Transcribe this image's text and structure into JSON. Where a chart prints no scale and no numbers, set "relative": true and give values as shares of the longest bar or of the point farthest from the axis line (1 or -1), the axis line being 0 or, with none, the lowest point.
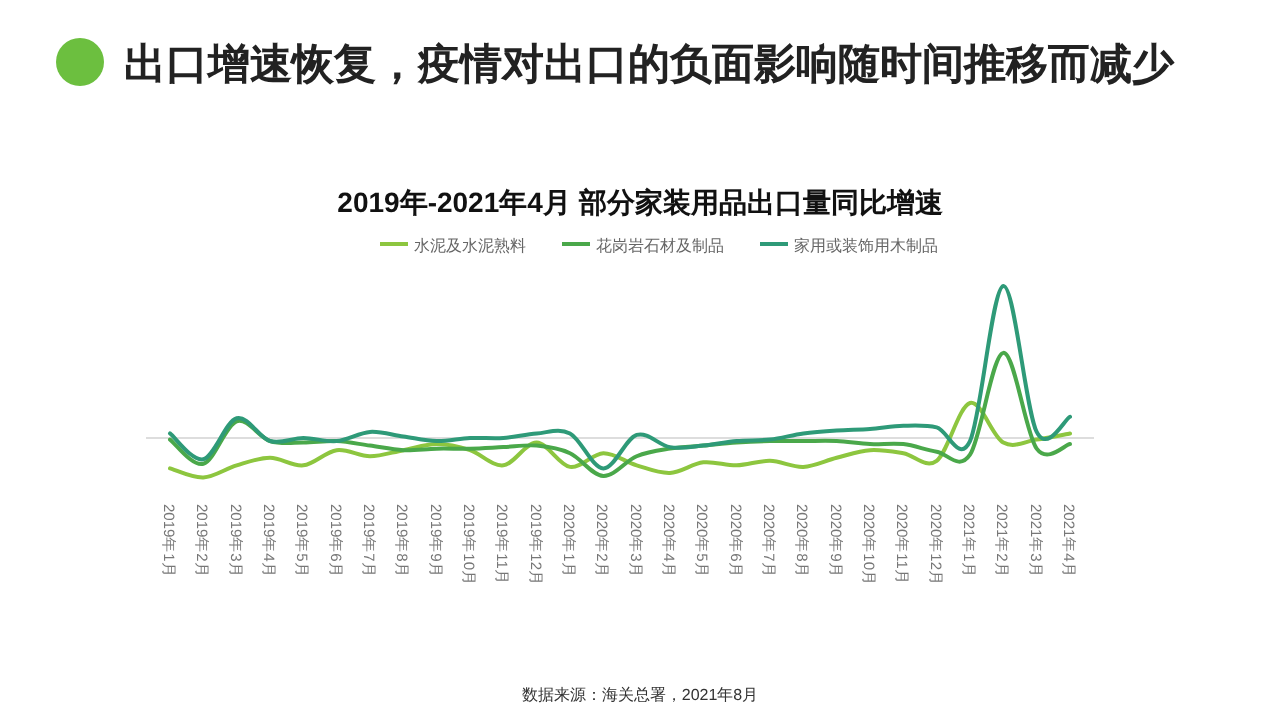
{
  "chart_data": {
    "type": "line",
    "title": "出口增速恢复，疫情对出口的负面影响随时间推移而减少",
    "subtitle": "2019年-2021年4月 部分家装用品出口量同比增速",
    "relative": true,
    "legend": "top",
    "marker": "none",
    "line_style": "solid",
    "categories": [
      "2019年1月",
      "2019年2月",
      "2019年3月",
      "2019年4月",
      "2019年5月",
      "2019年6月",
      "2019年7月",
      "2019年8月",
      "2019年9月",
      "2019年10月",
      "2019年11月",
      "2019年12月",
      "2020年1月",
      "2020年2月",
      "2020年3月",
      "2020年4月",
      "2020年5月",
      "2020年6月",
      "2020年7月",
      "2020年8月",
      "2020年9月",
      "2020年10月",
      "2020年11月",
      "2020年12月",
      "2021年1月",
      "2021年2月",
      "2021年3月",
      "2021年4月"
    ],
    "series": [
      {
        "name": "水泥及水泥熟料",
        "color": "#8dc63f",
        "values": [
          -0.2,
          -0.26,
          -0.18,
          -0.13,
          -0.18,
          -0.08,
          -0.12,
          -0.08,
          -0.04,
          -0.08,
          -0.18,
          -0.03,
          -0.19,
          -0.1,
          -0.18,
          -0.23,
          -0.16,
          -0.18,
          -0.15,
          -0.19,
          -0.13,
          -0.08,
          -0.1,
          -0.15,
          0.23,
          -0.03,
          -0.01,
          0.03
        ]
      },
      {
        "name": "花岗岩石材及制品",
        "color": "#4aa84a",
        "values": [
          -0.01,
          -0.17,
          0.11,
          -0.02,
          -0.03,
          -0.02,
          -0.05,
          -0.08,
          -0.07,
          -0.07,
          -0.06,
          -0.05,
          -0.1,
          -0.25,
          -0.12,
          -0.07,
          -0.05,
          -0.03,
          -0.02,
          -0.02,
          -0.02,
          -0.04,
          -0.04,
          -0.09,
          -0.11,
          0.56,
          -0.07,
          -0.04
        ]
      },
      {
        "name": "家用或装饰用木制品",
        "color": "#2e9a78",
        "values": [
          0.03,
          -0.14,
          0.13,
          -0.02,
          0,
          -0.02,
          0.04,
          0.01,
          -0.02,
          0,
          0,
          0.03,
          0.03,
          -0.2,
          0.02,
          -0.06,
          -0.05,
          -0.02,
          -0.01,
          0.03,
          0.05,
          0.06,
          0.08,
          0.07,
          -0.02,
          1,
          0.04,
          0.14
        ]
      }
    ],
    "annotations": [
      "数据来源：海关总署，2021年8月"
    ]
  }
}
